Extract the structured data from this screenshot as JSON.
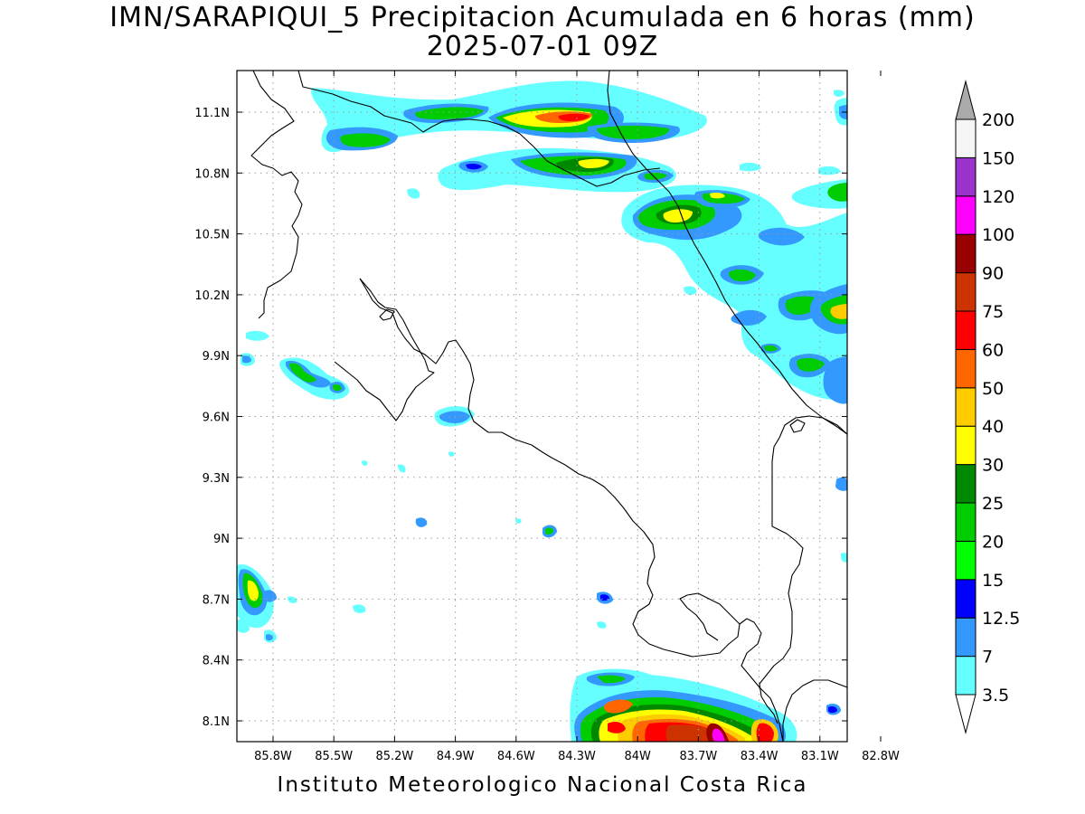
{
  "title": {
    "line1": "IMN/SARAPIQUI_5 Precipitacion Acumulada en 6 horas (mm)",
    "line2": "2025-07-01 09Z"
  },
  "footer": "Instituto Meteorologico Nacional Costa Rica",
  "map": {
    "lon_labels": [
      "85.8W",
      "85.5W",
      "85.2W",
      "84.9W",
      "84.6W",
      "84.3W",
      "84W",
      "83.7W",
      "83.4W",
      "83.1W",
      "82.8W"
    ],
    "lat_labels": [
      "11.1N",
      "10.8N",
      "10.5N",
      "10.2N",
      "9.9N",
      "9.6N",
      "9.3N",
      "9N",
      "8.7N",
      "8.4N",
      "8.1N"
    ],
    "grid": true,
    "colors": {
      "coastline": "#000000",
      "grid": "#9a9a9a"
    }
  },
  "colorbar": {
    "levels": [
      "3.5",
      "7",
      "12.5",
      "15",
      "20",
      "25",
      "30",
      "40",
      "50",
      "60",
      "75",
      "90",
      "100",
      "120",
      "150",
      "200"
    ],
    "colors": [
      "#ffffff",
      "#66ffff",
      "#3399ff",
      "#0000ff",
      "#00ff00",
      "#00cc00",
      "#008800",
      "#ffff00",
      "#ffcc00",
      "#ff6600",
      "#ff0000",
      "#cc3300",
      "#990000",
      "#ff00ff",
      "#9933cc",
      "#f5f5f5",
      "#aaaaaa"
    ]
  }
}
